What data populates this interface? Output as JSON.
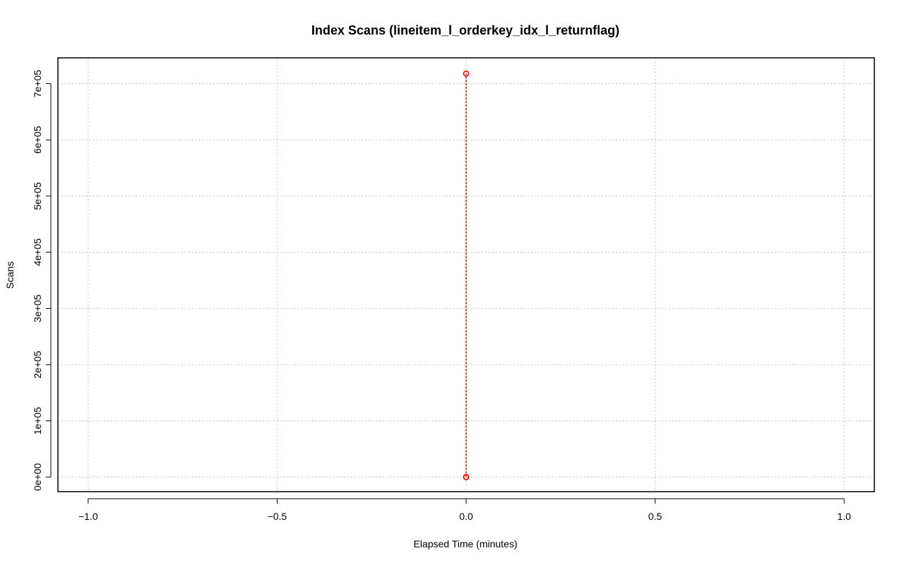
{
  "chart_data": {
    "type": "line",
    "title": "Index Scans (lineitem_l_orderkey_idx_l_returnflag)",
    "xlabel": "Elapsed Time (minutes)",
    "ylabel": "Scans",
    "xlim": [
      -1.08,
      1.08
    ],
    "ylim": [
      -26000,
      746000
    ],
    "x_ticks": [
      -1.0,
      -0.5,
      0.0,
      0.5,
      1.0
    ],
    "x_tick_labels": [
      "−1.0",
      "−0.5",
      "0.0",
      "0.5",
      "1.0"
    ],
    "y_ticks": [
      0,
      100000,
      200000,
      300000,
      400000,
      500000,
      600000,
      700000
    ],
    "y_tick_labels": [
      "0e+00",
      "1e+05",
      "2e+05",
      "3e+05",
      "4e+05",
      "5e+05",
      "6e+05",
      "7e+05"
    ],
    "grid": true,
    "grid_style": "dotted",
    "series": [
      {
        "color": "#ff0000",
        "line_style": "dashed",
        "marker": "open-circle",
        "points": [
          {
            "x": 0.0,
            "y": 0
          },
          {
            "x": 0.0,
            "y": 0
          },
          {
            "x": 0.0,
            "y": 718000
          }
        ]
      }
    ]
  }
}
